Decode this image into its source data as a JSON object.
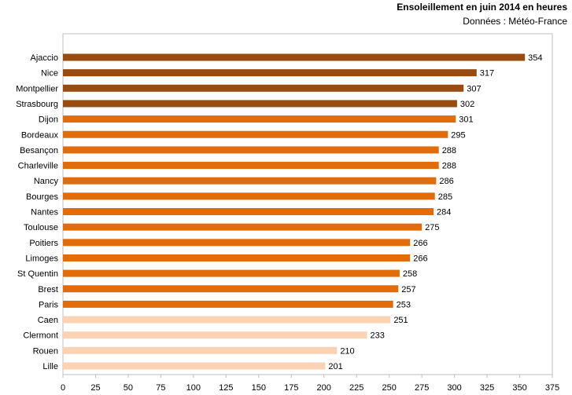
{
  "header": {
    "title": "Ensoleillement  en juin 2014 en heures",
    "subtitle": "Données : Météo-France"
  },
  "colors": {
    "dark": "#9a4b10",
    "orange": "#e36c0a",
    "light": "#fbd3b4"
  },
  "chart_data": {
    "type": "bar",
    "orientation": "horizontal",
    "title": "Ensoleillement  en juin 2014 en heures",
    "subtitle": "Données : Météo-France",
    "xlabel": "",
    "ylabel": "",
    "xlim": [
      0,
      375
    ],
    "ticks": [
      0,
      25,
      50,
      75,
      100,
      125,
      150,
      175,
      200,
      225,
      250,
      275,
      300,
      325,
      350,
      375
    ],
    "grid": false,
    "categories": [
      "Ajaccio",
      "Nice",
      "Montpellier",
      "Strasbourg",
      "Dijon",
      "Bordeaux",
      "Besançon",
      "Charleville",
      "Nancy",
      "Bourges",
      "Nantes",
      "Toulouse",
      "Poitiers",
      "Limoges",
      "St Quentin",
      "Brest",
      "Paris",
      "Caen",
      "Clermont",
      "Rouen",
      "Lille"
    ],
    "values": [
      354,
      317,
      307,
      302,
      301,
      295,
      288,
      288,
      286,
      285,
      284,
      275,
      266,
      266,
      258,
      257,
      253,
      251,
      233,
      210,
      201
    ],
    "bar_colors": [
      "#9a4b10",
      "#9a4b10",
      "#9a4b10",
      "#9a4b10",
      "#e36c0a",
      "#e36c0a",
      "#e36c0a",
      "#e36c0a",
      "#e36c0a",
      "#e36c0a",
      "#e36c0a",
      "#e36c0a",
      "#e36c0a",
      "#e36c0a",
      "#e36c0a",
      "#e36c0a",
      "#e36c0a",
      "#fbd3b4",
      "#fbd3b4",
      "#fbd3b4",
      "#fbd3b4"
    ]
  }
}
